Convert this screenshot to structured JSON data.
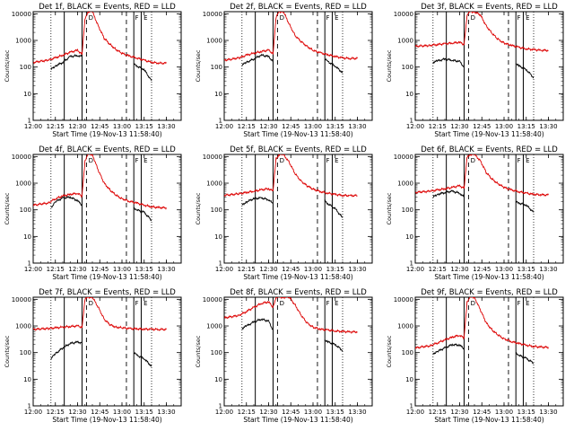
{
  "chart_data": {
    "type": "line",
    "xlabel": "Start Time (19-Nov-13 11:58:40)",
    "ylabel": "Counts/sec",
    "y_scale": "log",
    "ylim": [
      1,
      12000
    ],
    "xlim_minutes_after_midnight": [
      720,
      820
    ],
    "x_ticks": [
      "12:00",
      "12:15",
      "12:30",
      "12:45",
      "13:00",
      "13:15",
      "13:30"
    ],
    "y_ticks": [
      "1",
      "10",
      "100",
      "1000",
      "10000"
    ],
    "solid_markers": [
      "12:21",
      "12:33",
      "13:08",
      "13:13"
    ],
    "dashed_markers": [
      "12:36",
      "13:03"
    ],
    "dotted_markers": [
      "12:12",
      "13:20"
    ],
    "flag_labels": [
      "D",
      "F",
      "E"
    ],
    "series_style": {
      "Events": {
        "color": "#000000"
      },
      "LLD": {
        "color": "#dd0000"
      }
    },
    "panels": [
      {
        "title": "Det 1f, BLACK = Events, RED = LLD",
        "series": [
          {
            "name": "Events",
            "x": [
              "12:12",
              "12:15",
              "12:20",
              "12:25",
              "12:30",
              "12:33",
              "12:36",
              "12:40",
              "12:46",
              "12:50",
              "12:55",
              "13:00",
              "13:03",
              "13:08",
              "13:10",
              "13:15",
              "13:20"
            ],
            "values": [
              80,
              110,
              150,
              250,
              270,
              250,
              null,
              null,
              null,
              null,
              null,
              null,
              null,
              130,
              110,
              80,
              30
            ]
          },
          {
            "name": "LLD",
            "x": [
              "12:00",
              "12:10",
              "12:15",
              "12:20",
              "12:25",
              "12:30",
              "12:33",
              "12:35",
              "12:37",
              "12:40",
              "12:44",
              "12:48",
              "12:52",
              "12:56",
              "13:00",
              "13:05",
              "13:10",
              "13:15",
              "13:20",
              "13:25",
              "13:30"
            ],
            "values": [
              150,
              180,
              220,
              280,
              360,
              430,
              300,
              6000,
              12000,
              12000,
              3500,
              1200,
              700,
              450,
              330,
              260,
              220,
              180,
              150,
              140,
              140
            ]
          }
        ]
      },
      {
        "title": "Det 2f, BLACK = Events, RED = LLD",
        "series": [
          {
            "name": "Events",
            "x": [
              "12:12",
              "12:15",
              "12:20",
              "12:25",
              "12:30",
              "12:33",
              "12:36",
              "12:40",
              "12:46",
              "12:50",
              "12:55",
              "13:00",
              "13:03",
              "13:08",
              "13:10",
              "13:15",
              "13:20"
            ],
            "values": [
              120,
              150,
              200,
              280,
              250,
              160,
              null,
              null,
              null,
              null,
              null,
              null,
              null,
              200,
              160,
              110,
              60
            ]
          },
          {
            "name": "LLD",
            "x": [
              "12:00",
              "12:10",
              "12:15",
              "12:20",
              "12:25",
              "12:30",
              "12:33",
              "12:35",
              "12:37",
              "12:40",
              "12:44",
              "12:48",
              "12:52",
              "12:56",
              "13:00",
              "13:05",
              "13:10",
              "13:15",
              "13:20",
              "13:25",
              "13:30"
            ],
            "values": [
              180,
              220,
              280,
              330,
              380,
              430,
              320,
              7000,
              12000,
              12000,
              4000,
              1500,
              900,
              600,
              420,
              340,
              290,
              250,
              220,
              210,
              210
            ]
          }
        ]
      },
      {
        "title": "Det 3f, BLACK = Events, RED = LLD",
        "series": [
          {
            "name": "Events",
            "x": [
              "12:12",
              "12:15",
              "12:20",
              "12:25",
              "12:30",
              "12:33",
              "12:36",
              "12:40",
              "12:46",
              "12:50",
              "12:55",
              "13:00",
              "13:03",
              "13:08",
              "13:10",
              "13:15",
              "13:20"
            ],
            "values": [
              150,
              170,
              200,
              180,
              160,
              100,
              null,
              null,
              null,
              null,
              null,
              null,
              null,
              140,
              110,
              80,
              40
            ]
          },
          {
            "name": "LLD",
            "x": [
              "12:00",
              "12:10",
              "12:15",
              "12:20",
              "12:25",
              "12:30",
              "12:33",
              "12:35",
              "12:37",
              "12:40",
              "12:44",
              "12:48",
              "12:52",
              "12:56",
              "13:00",
              "13:05",
              "13:10",
              "13:15",
              "13:20",
              "13:25",
              "13:30"
            ],
            "values": [
              600,
              650,
              700,
              750,
              800,
              850,
              700,
              9000,
              12000,
              12000,
              9000,
              3500,
              1800,
              1100,
              800,
              650,
              550,
              480,
              450,
              430,
              420
            ]
          }
        ]
      },
      {
        "title": "Det 4f, BLACK = Events, RED = LLD",
        "series": [
          {
            "name": "Events",
            "x": [
              "12:12",
              "12:15",
              "12:20",
              "12:25",
              "12:30",
              "12:33",
              "12:36",
              "12:40",
              "12:46",
              "12:50",
              "12:55",
              "13:00",
              "13:03",
              "13:08",
              "13:10",
              "13:15",
              "13:20"
            ],
            "values": [
              120,
              200,
              280,
              300,
              220,
              150,
              null,
              null,
              null,
              null,
              null,
              null,
              null,
              120,
              100,
              80,
              40
            ]
          },
          {
            "name": "LLD",
            "x": [
              "12:00",
              "12:10",
              "12:15",
              "12:20",
              "12:25",
              "12:30",
              "12:33",
              "12:35",
              "12:37",
              "12:40",
              "12:44",
              "12:48",
              "12:52",
              "12:56",
              "13:00",
              "13:05",
              "13:10",
              "13:15",
              "13:20",
              "13:25",
              "13:30"
            ],
            "values": [
              150,
              180,
              260,
              330,
              380,
              420,
              320,
              7000,
              12000,
              12000,
              3000,
              1000,
              550,
              350,
              260,
              210,
              180,
              150,
              130,
              120,
              120
            ]
          }
        ]
      },
      {
        "title": "Det 5f, BLACK = Events, RED = LLD",
        "series": [
          {
            "name": "Events",
            "x": [
              "12:12",
              "12:15",
              "12:20",
              "12:25",
              "12:30",
              "12:33",
              "12:36",
              "12:40",
              "12:46",
              "12:50",
              "12:55",
              "13:00",
              "13:03",
              "13:08",
              "13:10",
              "13:15",
              "13:20"
            ],
            "values": [
              150,
              200,
              260,
              280,
              240,
              170,
              null,
              null,
              null,
              null,
              null,
              null,
              null,
              220,
              170,
              110,
              50
            ]
          },
          {
            "name": "LLD",
            "x": [
              "12:00",
              "12:10",
              "12:15",
              "12:20",
              "12:25",
              "12:30",
              "12:33",
              "12:35",
              "12:37",
              "12:40",
              "12:44",
              "12:48",
              "12:52",
              "12:56",
              "13:00",
              "13:05",
              "13:10",
              "13:15",
              "13:20",
              "13:25",
              "13:30"
            ],
            "values": [
              350,
              400,
              450,
              500,
              560,
              620,
              500,
              8000,
              12000,
              12000,
              6000,
              2200,
              1200,
              800,
              600,
              480,
              420,
              380,
              350,
              340,
              340
            ]
          }
        ]
      },
      {
        "title": "Det 6f, BLACK = Events, RED = LLD",
        "series": [
          {
            "name": "Events",
            "x": [
              "12:12",
              "12:15",
              "12:20",
              "12:25",
              "12:30",
              "12:33",
              "12:36",
              "12:40",
              "12:46",
              "12:50",
              "12:55",
              "13:00",
              "13:03",
              "13:08",
              "13:10",
              "13:15",
              "13:20"
            ],
            "values": [
              300,
              380,
              450,
              500,
              420,
              300,
              null,
              null,
              null,
              null,
              null,
              null,
              null,
              200,
              180,
              150,
              80
            ]
          },
          {
            "name": "LLD",
            "x": [
              "12:00",
              "12:10",
              "12:15",
              "12:20",
              "12:25",
              "12:30",
              "12:33",
              "12:35",
              "12:37",
              "12:40",
              "12:44",
              "12:48",
              "12:52",
              "12:56",
              "13:00",
              "13:05",
              "13:10",
              "13:15",
              "13:20",
              "13:25",
              "13:30"
            ],
            "values": [
              450,
              500,
              550,
              620,
              700,
              800,
              650,
              9000,
              12000,
              12000,
              7000,
              2500,
              1400,
              950,
              700,
              560,
              480,
              420,
              380,
              370,
              360
            ]
          }
        ]
      },
      {
        "title": "Det 7f, BLACK = Events, RED = LLD",
        "series": [
          {
            "name": "Events",
            "x": [
              "12:12",
              "12:15",
              "12:20",
              "12:25",
              "12:30",
              "12:33",
              "12:36",
              "12:40",
              "12:46",
              "12:50",
              "12:55",
              "13:00",
              "13:03",
              "13:08",
              "13:10",
              "13:15",
              "13:20"
            ],
            "values": [
              60,
              90,
              150,
              220,
              250,
              230,
              null,
              null,
              null,
              null,
              null,
              null,
              null,
              100,
              80,
              60,
              30
            ]
          },
          {
            "name": "LLD",
            "x": [
              "12:00",
              "12:10",
              "12:15",
              "12:20",
              "12:25",
              "12:30",
              "12:33",
              "12:35",
              "12:37",
              "12:40",
              "12:44",
              "12:48",
              "12:52",
              "12:56",
              "13:00",
              "13:05",
              "13:10",
              "13:15",
              "13:20",
              "13:25",
              "13:30"
            ],
            "values": [
              750,
              800,
              850,
              900,
              950,
              1000,
              900,
              10000,
              12000,
              12000,
              5000,
              1800,
              1100,
              900,
              850,
              800,
              780,
              760,
              750,
              740,
              740
            ]
          }
        ]
      },
      {
        "title": "Det 8f, BLACK = Events, RED = LLD",
        "series": [
          {
            "name": "Events",
            "x": [
              "12:12",
              "12:15",
              "12:20",
              "12:25",
              "12:30",
              "12:33",
              "12:36",
              "12:40",
              "12:46",
              "12:50",
              "12:55",
              "13:00",
              "13:03",
              "13:08",
              "13:10",
              "13:15",
              "13:20"
            ],
            "values": [
              800,
              1000,
              1400,
              1800,
              1500,
              700,
              null,
              null,
              null,
              null,
              null,
              null,
              null,
              300,
              250,
              200,
              120
            ]
          },
          {
            "name": "LLD",
            "x": [
              "12:00",
              "12:10",
              "12:15",
              "12:20",
              "12:25",
              "12:30",
              "12:33",
              "12:35",
              "12:37",
              "12:40",
              "12:44",
              "12:48",
              "12:52",
              "12:56",
              "13:00",
              "13:05",
              "13:10",
              "13:15",
              "13:20",
              "13:25",
              "13:30"
            ],
            "values": [
              2000,
              2500,
              3500,
              5000,
              7000,
              8000,
              5000,
              12000,
              12000,
              12000,
              12000,
              6000,
              2500,
              1300,
              900,
              750,
              700,
              650,
              620,
              600,
              600
            ]
          }
        ]
      },
      {
        "title": "Det 9f, BLACK = Events, RED = LLD",
        "series": [
          {
            "name": "Events",
            "x": [
              "12:12",
              "12:15",
              "12:20",
              "12:25",
              "12:30",
              "12:33",
              "12:36",
              "12:40",
              "12:46",
              "12:50",
              "12:55",
              "13:00",
              "13:03",
              "13:08",
              "13:10",
              "13:15",
              "13:20"
            ],
            "values": [
              90,
              110,
              150,
              200,
              190,
              140,
              null,
              null,
              null,
              null,
              null,
              null,
              null,
              100,
              80,
              60,
              40
            ]
          },
          {
            "name": "LLD",
            "x": [
              "12:00",
              "12:10",
              "12:15",
              "12:20",
              "12:25",
              "12:30",
              "12:33",
              "12:35",
              "12:37",
              "12:40",
              "12:44",
              "12:48",
              "12:52",
              "12:56",
              "13:00",
              "13:05",
              "13:10",
              "13:15",
              "13:20",
              "13:25",
              "13:30"
            ],
            "values": [
              150,
              180,
              230,
              300,
              380,
              450,
              350,
              8000,
              12000,
              12000,
              4000,
              1300,
              700,
              450,
              330,
              260,
              220,
              190,
              170,
              160,
              160
            ]
          }
        ]
      }
    ]
  }
}
